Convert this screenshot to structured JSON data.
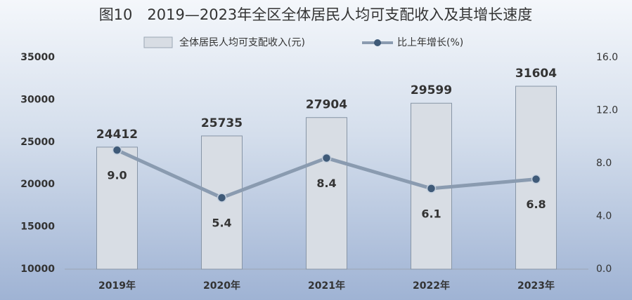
{
  "chart_data": {
    "type": "bar",
    "title": "图10　2019—2023年全区全体居民人均可支配收入及其增长速度",
    "categories": [
      "2019年",
      "2020年",
      "2021年",
      "2022年",
      "2023年"
    ],
    "series": [
      {
        "name": "全体居民人均可支配收入(元)",
        "type": "bar",
        "color": "#d8dde4",
        "values": [
          24412,
          25735,
          27904,
          29599,
          31604
        ]
      },
      {
        "name": "比上年增长(%)",
        "type": "line",
        "axis": "y2",
        "color": "#8a9bb0",
        "marker_color": "#3f5a78",
        "values": [
          9.0,
          5.4,
          8.4,
          6.1,
          6.8
        ],
        "value_labels": [
          "9.0",
          "5.4",
          "8.4",
          "6.1",
          "6.8"
        ]
      }
    ],
    "ylim": [
      10000,
      35000
    ],
    "yticks": [
      10000,
      15000,
      20000,
      25000,
      30000,
      35000
    ],
    "y2lim": [
      0,
      16
    ],
    "y2ticks": [
      {
        "value": 0,
        "label": "0.0"
      },
      {
        "value": 4,
        "label": "4.0"
      },
      {
        "value": 8,
        "label": "8.0"
      },
      {
        "value": 12,
        "label": "12.0"
      },
      {
        "value": 16,
        "label": "16.0"
      }
    ],
    "grid": false
  }
}
